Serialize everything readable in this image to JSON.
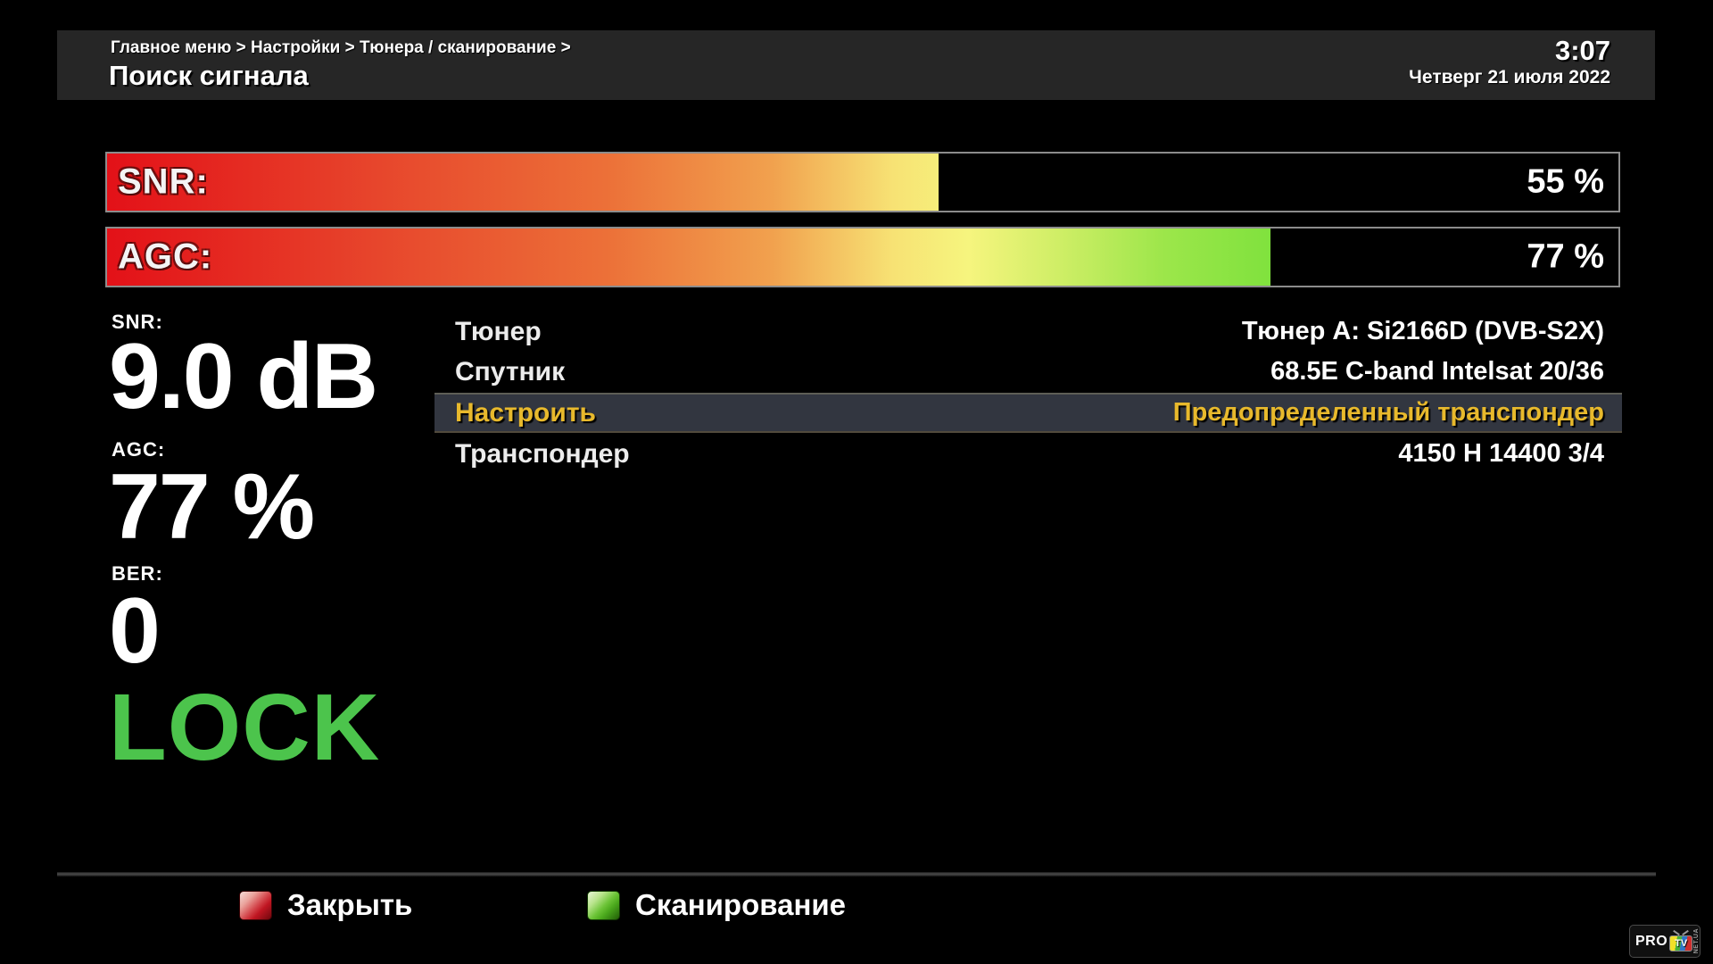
{
  "header": {
    "breadcrumb": "Главное меню > Настройки > Тюнера / сканирование >",
    "title": "Поиск сигнала",
    "clock": {
      "time": "3:07",
      "date": "Четверг 21 июля 2022"
    }
  },
  "signal_bars": [
    {
      "id": "snr",
      "label": "SNR:",
      "percent": 55,
      "value_text": "55 %"
    },
    {
      "id": "agc",
      "label": "AGC:",
      "percent": 77,
      "value_text": "77 %"
    }
  ],
  "stats": [
    {
      "label": "SNR:",
      "value": "9.0 dB"
    },
    {
      "label": "AGC:",
      "value": "77 %"
    },
    {
      "label": "BER:",
      "value": "0"
    }
  ],
  "lock_status": "LOCK",
  "menu": {
    "rows": [
      {
        "label": "Тюнер",
        "value": "Тюнер A: Si2166D (DVB-S2X)",
        "selected": false
      },
      {
        "label": "Спутник",
        "value": "68.5E C-band Intelsat 20/36",
        "selected": false
      },
      {
        "label": "Настроить",
        "value": "Предопределенный транспондер",
        "selected": true
      },
      {
        "label": "Транспондер",
        "value": "4150 H 14400 3/4",
        "selected": false
      }
    ]
  },
  "footer": {
    "buttons": [
      {
        "key": "red",
        "label": "Закрыть"
      },
      {
        "key": "green",
        "label": "Сканирование"
      }
    ]
  },
  "logo": {
    "pro": "PRO",
    "tv": "TV",
    "suffix": "NET.UA"
  },
  "colors": {
    "header_bg": "#262626",
    "bar_gradient_red": "#e31118",
    "bar_gradient_yellow": "#f6f57e",
    "bar_gradient_green": "#7ce13c",
    "selected_row_bg": "#323640",
    "selected_text": "#e8b92c",
    "lock_green": "#4cc44c",
    "red_key": "#c01622",
    "green_key": "#4aa81c"
  }
}
